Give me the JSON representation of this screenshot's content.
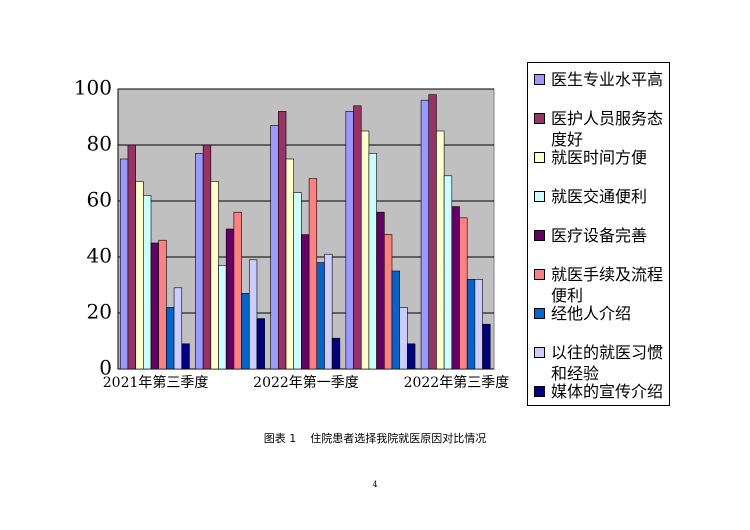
{
  "chart_data": {
    "type": "bar",
    "categories": [
      "2021年第三季度",
      null,
      "2022年第一季度",
      null,
      "2022年第三季度"
    ],
    "series": [
      {
        "name": "医生专业水平高",
        "color": "#9999ff",
        "values": [
          75,
          77,
          87,
          92,
          96
        ]
      },
      {
        "name": "医护人员服务态度好",
        "color": "#993366",
        "values": [
          80,
          80,
          92,
          94,
          98
        ]
      },
      {
        "name": "就医时间方便",
        "color": "#ffffcc",
        "values": [
          67,
          67,
          75,
          85,
          85
        ]
      },
      {
        "name": "就医交通便利",
        "color": "#ccffff",
        "values": [
          62,
          37,
          63,
          77,
          69
        ]
      },
      {
        "name": "医疗设备完善",
        "color": "#660066",
        "values": [
          45,
          50,
          48,
          56,
          58
        ]
      },
      {
        "name": "就医手续及流程便利",
        "color": "#ff8080",
        "values": [
          46,
          56,
          68,
          48,
          54
        ]
      },
      {
        "name": "经他人介绍",
        "color": "#0066cc",
        "values": [
          22,
          27,
          38,
          35,
          32
        ]
      },
      {
        "name": "以往的就医习惯和经验",
        "color": "#ccccff",
        "values": [
          29,
          39,
          41,
          22,
          32
        ]
      },
      {
        "name": "媒体的宣传介绍",
        "color": "#000080",
        "values": [
          9,
          18,
          11,
          9,
          16
        ]
      }
    ],
    "ylim": [
      0,
      100
    ],
    "yticks": [
      0,
      20,
      40,
      60,
      80,
      100
    ],
    "grid": true,
    "legend": "right"
  },
  "caption": "图表 1    住院患者选择我院就医原因对比情况",
  "page_number": "4"
}
